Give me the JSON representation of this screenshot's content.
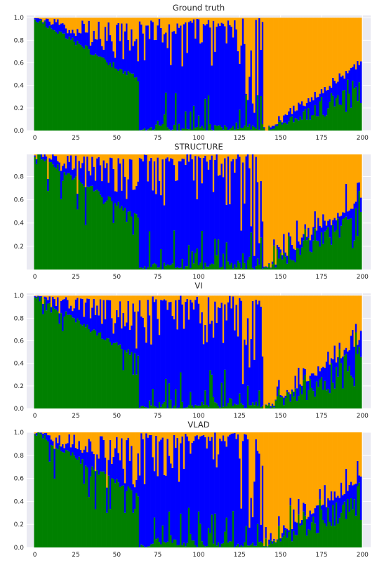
{
  "colors": {
    "green": "#008000",
    "blue": "#0000ff",
    "orange": "#ffa500",
    "panel_bg": "#eaeaf2",
    "grid": "#ffffff"
  },
  "chart_data": [
    {
      "type": "bar",
      "stacked": true,
      "title": "Ground truth",
      "xlim": [
        -5,
        205
      ],
      "ylim": [
        0,
        1.02
      ],
      "xticks": [
        0,
        25,
        50,
        75,
        100,
        125,
        150,
        175,
        200
      ],
      "yticks": [
        "0.0",
        "0.2",
        "0.4",
        "0.6",
        "0.8",
        "1.0"
      ],
      "grid": true,
      "n_samples": 200,
      "series": [
        {
          "color": "green",
          "group_means": [
            0.72,
            0.12,
            0.16
          ]
        },
        {
          "color": "blue",
          "group_means": [
            0.13,
            0.72,
            0.12
          ]
        },
        {
          "color": "orange",
          "group_means": [
            0.15,
            0.16,
            0.72
          ]
        }
      ]
    },
    {
      "type": "bar",
      "stacked": true,
      "title": "STRUCTURE",
      "xlim": [
        -5,
        205
      ],
      "ylim": [
        0,
        0.99
      ],
      "xticks": [
        0,
        25,
        50,
        75,
        100,
        125,
        150,
        175,
        200
      ],
      "yticks": [
        "0.2",
        "0.4",
        "0.6",
        "0.8"
      ],
      "grid": true,
      "n_samples": 200,
      "series": [
        {
          "color": "green",
          "group_means": [
            0.72,
            0.1,
            0.14
          ]
        },
        {
          "color": "blue",
          "group_means": [
            0.12,
            0.75,
            0.1
          ]
        },
        {
          "color": "orange",
          "group_means": [
            0.16,
            0.15,
            0.76
          ]
        }
      ]
    },
    {
      "type": "bar",
      "stacked": true,
      "title": "VI",
      "xlim": [
        -5,
        205
      ],
      "ylim": [
        0,
        1.02
      ],
      "xticks": [
        0,
        25,
        50,
        75,
        100,
        125,
        150,
        175,
        200
      ],
      "yticks": [
        "0.0",
        "0.2",
        "0.4",
        "0.6",
        "0.8",
        "1.0"
      ],
      "grid": true,
      "n_samples": 200,
      "series": [
        {
          "color": "green",
          "group_means": [
            0.74,
            0.1,
            0.14
          ]
        },
        {
          "color": "blue",
          "group_means": [
            0.12,
            0.76,
            0.1
          ]
        },
        {
          "color": "orange",
          "group_means": [
            0.14,
            0.14,
            0.76
          ]
        }
      ]
    },
    {
      "type": "bar",
      "stacked": true,
      "title": "VLAD",
      "xlim": [
        -5,
        205
      ],
      "ylim": [
        0,
        1.0
      ],
      "xticks": [
        0,
        25,
        50,
        75,
        100,
        125,
        150,
        175,
        200
      ],
      "yticks": [
        "0.0",
        "0.2",
        "0.4",
        "0.6",
        "0.8",
        "1.0"
      ],
      "grid": true,
      "n_samples": 200,
      "series": [
        {
          "color": "green",
          "group_means": [
            0.74,
            0.1,
            0.14
          ]
        },
        {
          "color": "blue",
          "group_means": [
            0.12,
            0.76,
            0.1
          ]
        },
        {
          "color": "orange",
          "group_means": [
            0.14,
            0.14,
            0.76
          ]
        }
      ]
    }
  ]
}
